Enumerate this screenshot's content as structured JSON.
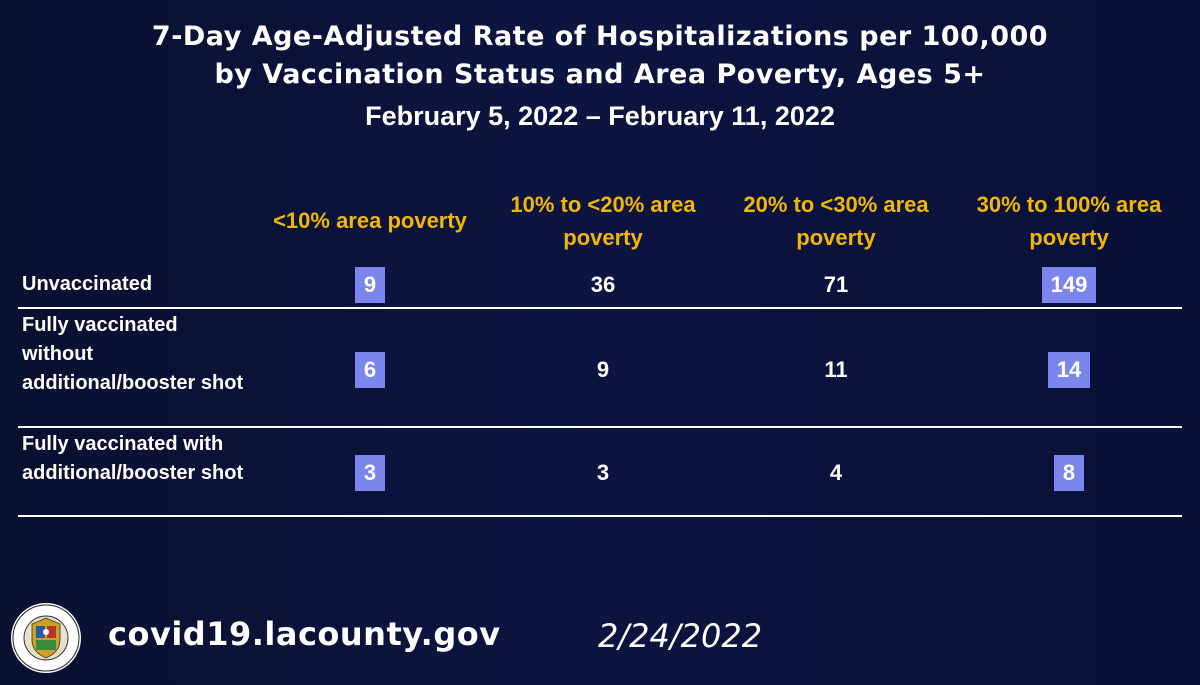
{
  "title": {
    "line1": "7-Day Age-Adjusted Rate of Hospitalizations per 100,000",
    "line2": "by Vaccination Status and Area Poverty, Ages 5+",
    "date_range": "February 5, 2022 – February 11, 2022"
  },
  "chart_data": {
    "type": "table",
    "columns": [
      "<10% area poverty",
      "10% to <20% area poverty",
      "20% to <30% area poverty",
      "30% to 100% area poverty"
    ],
    "rows": [
      {
        "label": "Unvaccinated",
        "values": [
          9,
          36,
          71,
          149
        ],
        "highlighted": [
          true,
          false,
          false,
          true
        ]
      },
      {
        "label": "Fully vaccinated without additional/booster shot",
        "values": [
          6,
          9,
          11,
          14
        ],
        "highlighted": [
          true,
          false,
          false,
          true
        ]
      },
      {
        "label": "Fully vaccinated with additional/booster shot",
        "values": [
          3,
          3,
          4,
          8
        ],
        "highlighted": [
          true,
          false,
          false,
          true
        ]
      }
    ],
    "column_header_color": "#f2b705",
    "highlight_color": "#7a86ec"
  },
  "footer": {
    "url": "covid19.lacounty.gov",
    "date": "2/24/2022",
    "seal_text_top": "COUNTY OF LOS ANGELES",
    "seal_text_bottom": "CALIFORNIA"
  }
}
